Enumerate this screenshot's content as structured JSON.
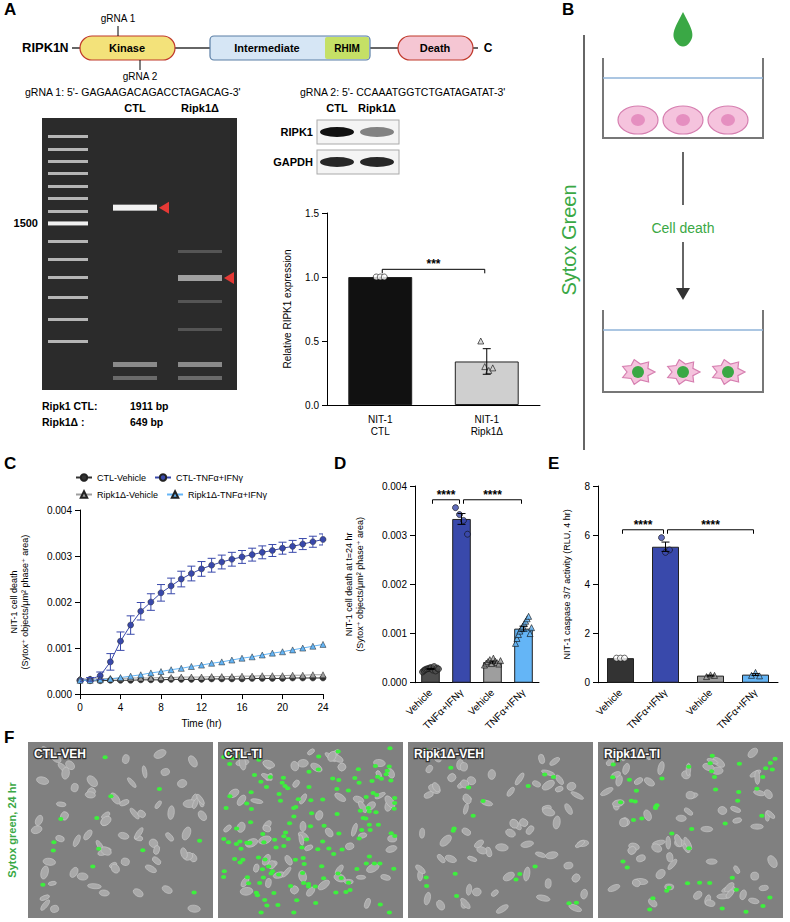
{
  "chart_data": [
    {
      "panel": "A",
      "type": "bar",
      "categories": [
        "NIT-1 CTL",
        "NIT-1 Ripk1Δ"
      ],
      "values": [
        1.0,
        0.34
      ],
      "errors": [
        0.0,
        0.1
      ],
      "points": [
        [
          1.0,
          1.0,
          1.0
        ],
        [
          0.5,
          0.3,
          0.27,
          0.29
        ]
      ],
      "colors": [
        "#111111",
        "#cfcfcf"
      ],
      "marker": [
        "circle",
        "triangle"
      ],
      "y_label": "Relative RIPK1 expression",
      "ylim": [
        0,
        1.5
      ],
      "yticks": [
        {
          "value": 0,
          "label": "0.0"
        },
        {
          "value": 0.5,
          "label": "0.5"
        },
        {
          "value": 1,
          "label": "1.0"
        },
        {
          "value": 1.5,
          "label": "1.5"
        }
      ],
      "comparisons": [
        {
          "from": 0,
          "to": 1,
          "label": "***"
        }
      ],
      "grid": false
    },
    {
      "panel": "C",
      "type": "line",
      "x": [
        0,
        1,
        2,
        3,
        4,
        5,
        6,
        7,
        8,
        9,
        10,
        11,
        12,
        13,
        14,
        15,
        16,
        17,
        18,
        19,
        20,
        21,
        22,
        23,
        24
      ],
      "series": [
        {
          "name": "CTL-Vehicle",
          "color": "#333333",
          "marker": "circle",
          "values": [
            0.0003,
            0.00029,
            0.00029,
            0.0003,
            0.0003,
            0.0003,
            0.00031,
            0.00031,
            0.00031,
            0.00032,
            0.00032,
            0.00032,
            0.00032,
            0.00033,
            0.00033,
            0.00033,
            0.00033,
            0.00034,
            0.00034,
            0.00034,
            0.00034,
            0.00035,
            0.00035,
            0.00035,
            0.00035
          ]
        },
        {
          "name": "CTL-TNFα+IFNγ",
          "color": "#3949ab",
          "marker": "circle",
          "values": [
            0.0003,
            0.00032,
            0.0004,
            0.0007,
            0.00115,
            0.0015,
            0.0018,
            0.002,
            0.0022,
            0.00235,
            0.0025,
            0.00262,
            0.00272,
            0.0028,
            0.00287,
            0.00293,
            0.00298,
            0.00303,
            0.00308,
            0.00312,
            0.00317,
            0.00321,
            0.00326,
            0.00331,
            0.00336
          ],
          "errors": [
            3e-05,
            4e-05,
            8e-05,
            0.00018,
            0.0002,
            0.0002,
            0.00019,
            0.00018,
            0.00018,
            0.00017,
            0.00017,
            0.00016,
            0.00016,
            0.00015,
            0.00015,
            0.00015,
            0.00014,
            0.00014,
            0.00014,
            0.00013,
            0.00013,
            0.00013,
            0.00012,
            0.00012,
            0.00012
          ]
        },
        {
          "name": "Ripk1Δ-Vehicle",
          "color": "#9e9e9e",
          "marker": "triangle",
          "values": [
            0.00033,
            0.00033,
            0.00033,
            0.00034,
            0.00034,
            0.00035,
            0.00035,
            0.00035,
            0.00036,
            0.00036,
            0.00037,
            0.00037,
            0.00037,
            0.00038,
            0.00038,
            0.00038,
            0.00039,
            0.00039,
            0.0004,
            0.0004,
            0.0004,
            0.00041,
            0.00041,
            0.00042,
            0.00042
          ]
        },
        {
          "name": "Ripk1Δ-TNFα+IFNγ",
          "color": "#64b5f6",
          "marker": "triangle",
          "values": [
            0.0003,
            0.0003,
            0.00031,
            0.00033,
            0.00036,
            0.00039,
            0.00042,
            0.00046,
            0.00049,
            0.00053,
            0.00056,
            0.0006,
            0.00063,
            0.00067,
            0.0007,
            0.00074,
            0.00078,
            0.00081,
            0.00085,
            0.00089,
            0.00092,
            0.00096,
            0.001,
            0.00104,
            0.00108
          ]
        }
      ],
      "x_label": "Time (hr)",
      "y_label": "NIT-1 cell death\n(Sytox⁺ objects/μm² phase⁺ area)",
      "xlim": [
        0,
        24
      ],
      "xticks": [
        0,
        4,
        8,
        12,
        16,
        20,
        24
      ],
      "ylim": [
        0,
        0.004
      ],
      "yticks": [
        {
          "value": 0,
          "label": "0.000"
        },
        {
          "value": 0.001,
          "label": "0.001"
        },
        {
          "value": 0.002,
          "label": "0.002"
        },
        {
          "value": 0.003,
          "label": "0.003"
        },
        {
          "value": 0.004,
          "label": "0.004"
        }
      ],
      "legend": "top",
      "grid": false
    },
    {
      "panel": "D",
      "type": "bar",
      "categories": [
        "Vehicle",
        "TNFα+IFNγ",
        "Vehicle",
        "TNFα+IFNγ"
      ],
      "values": [
        0.00028,
        0.00333,
        0.00042,
        0.0011
      ],
      "errors": [
        1e-05,
        0.00011,
        2e-05,
        5e-05
      ],
      "points": [
        [
          0.00022,
          0.00025,
          0.00027,
          0.00028,
          0.00029,
          0.0003,
          0.00031,
          0.00026,
          0.00033,
          0.00024,
          0.0003,
          0.00028
        ],
        [
          0.00356,
          0.00342,
          0.0033,
          0.00302
        ],
        [
          0.00036,
          0.0004,
          0.00043,
          0.00047,
          0.00039,
          0.0005,
          0.00044,
          0.00041,
          0.00038,
          0.00045
        ],
        [
          0.0008,
          0.0009,
          0.00098,
          0.00105,
          0.0011,
          0.00115,
          0.0012,
          0.00125,
          0.0013,
          0.00135,
          0.001,
          0.00112
        ]
      ],
      "colors": [
        "#4d4d4d",
        "#3949ab",
        "#9e9e9e",
        "#64b5f6"
      ],
      "marker": [
        "circle",
        "circle",
        "triangle",
        "triangle"
      ],
      "y_label": "NIT-1 cell death at t=24 hr\n(Sytox⁺ objects/μm² phase⁺ area)",
      "ylim": [
        0,
        0.004
      ],
      "yticks": [
        {
          "value": 0,
          "label": "0.000"
        },
        {
          "value": 0.001,
          "label": "0.001"
        },
        {
          "value": 0.002,
          "label": "0.002"
        },
        {
          "value": 0.003,
          "label": "0.003"
        },
        {
          "value": 0.004,
          "label": "0.004"
        }
      ],
      "comparisons": [
        {
          "from": 0,
          "to": 1,
          "label": "****"
        },
        {
          "from": 1,
          "to": 3,
          "label": "****"
        }
      ],
      "grid": false
    },
    {
      "panel": "E",
      "type": "bar",
      "categories": [
        "Vehicle",
        "TNFα+IFNγ",
        "Vehicle",
        "TNFα+IFNγ"
      ],
      "values": [
        1.0,
        5.53,
        0.29,
        0.33
      ],
      "errors": [
        0.0,
        0.19,
        0.02,
        0.04
      ],
      "points": [
        [
          1.0,
          1.0,
          1.0
        ],
        [
          5.9,
          5.3,
          5.4
        ],
        [
          0.25,
          0.32,
          0.3
        ],
        [
          0.3,
          0.42,
          0.28
        ]
      ],
      "colors": [
        "#333333",
        "#3949ab",
        "#9e9e9e",
        "#64b5f6"
      ],
      "marker": [
        "circle",
        "circle",
        "triangle",
        "triangle"
      ],
      "y_label": "NIT-1 caspase 3/7 activity (RLU, 4 hr)",
      "ylim": [
        0,
        8
      ],
      "yticks": [
        0,
        2,
        4,
        6,
        8
      ],
      "comparisons": [
        {
          "from": 0,
          "to": 1,
          "label": "****"
        },
        {
          "from": 1,
          "to": 3,
          "label": "****"
        }
      ],
      "grid": false
    }
  ],
  "schematic": {
    "protein": "RIPK1",
    "n_label": "N",
    "c_label": "C",
    "domains": [
      "Kinase",
      "Intermediate",
      "RHIM",
      "Death"
    ],
    "guides": [
      "gRNA 1",
      "gRNA 2"
    ],
    "sequences": [
      "gRNA 1: 5'- GAGAAGACAGACCTAGACAG-3'",
      "gRNA 2: 5'- CCAAATGGTCTGATAGATAT-3'"
    ]
  },
  "gel": {
    "lanes": [
      "CTL",
      "Ripk1Δ"
    ],
    "marker": {
      "bp": 1500,
      "label": "1500"
    },
    "products": [
      {
        "name": "Ripk1 CTL:",
        "bp": 1911,
        "size": "1911 bp"
      },
      {
        "name": "Ripk1Δ :",
        "bp": 649,
        "size": "649 bp"
      }
    ]
  },
  "western": {
    "lanes": [
      "CTL",
      "Ripk1Δ"
    ],
    "proteins": [
      "RIPK1",
      "GAPDH"
    ]
  },
  "assay": {
    "panel": "B",
    "label": "Sytox Green",
    "step": "Cell death"
  },
  "images": {
    "panel": "F",
    "label": "Sytox green, 24 hr",
    "panels": [
      "CTL-VEH",
      "CTL-TI",
      "Ripk1Δ-VEH",
      "Ripk1Δ-TI"
    ]
  }
}
